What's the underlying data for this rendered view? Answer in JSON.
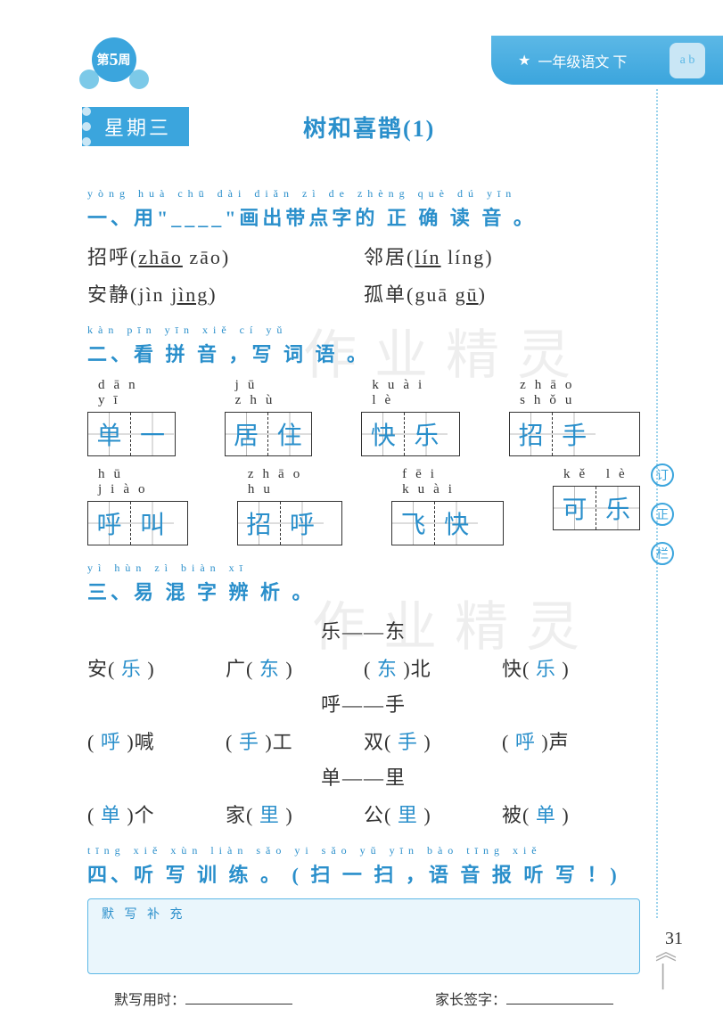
{
  "header": {
    "grade_label": "一年级语文 下",
    "cube_text": "a b"
  },
  "week_badge": {
    "prefix": "第",
    "num": "5",
    "suffix": "周"
  },
  "day_tag": "星期三",
  "lesson_title": "树和喜鹊(1)",
  "q1": {
    "pinyin": "yòng        huà chū dài diǎn zì  de zhèng què dú yīn",
    "heading": "一、用\"____\"画出带点字的 正 确 读 音 。",
    "rows": [
      {
        "left_char": "招呼(",
        "left_a": "zhāo",
        "left_b": "  zāo)",
        "right_char": "邻居(",
        "right_a": "lín",
        "right_b": "  líng)"
      },
      {
        "left_char": "安静(jìn  ",
        "left_a": "jìng",
        "left_b": ")",
        "right_char": "孤单(guā  ",
        "right_a": "gū",
        "right_b": ")"
      }
    ]
  },
  "q2": {
    "pinyin": "kàn pīn yīn   xiě cí yǔ",
    "heading": "二、看 拼 音 ，写 词 语 。",
    "rows": [
      [
        {
          "pinyin": "dān   yī",
          "chars": [
            "单",
            "一"
          ]
        },
        {
          "pinyin": "jū   zhù",
          "chars": [
            "居",
            "住"
          ]
        },
        {
          "pinyin": "kuài  lè",
          "chars": [
            "快",
            "乐"
          ]
        },
        {
          "pinyin": "zhāo shǒu",
          "chars": [
            "招",
            "手"
          ]
        }
      ],
      [
        {
          "pinyin": "hū   jiào",
          "chars": [
            "呼",
            "叫"
          ]
        },
        {
          "pinyin": "zhāo  hu",
          "chars": [
            "招",
            "呼"
          ]
        },
        {
          "pinyin": "fēi  kuài",
          "chars": [
            "飞",
            "快"
          ]
        },
        {
          "pinyin": "kě   lè",
          "chars": [
            "可",
            "乐"
          ]
        }
      ]
    ]
  },
  "q3": {
    "pinyin": "yì hùn zì biàn xī",
    "heading": "三、易 混 字 辨 析 。",
    "groups": [
      {
        "pair": "乐——东",
        "items": [
          {
            "pre": "安(",
            "ans": "乐",
            "post": ")"
          },
          {
            "pre": "广(",
            "ans": "东",
            "post": ")"
          },
          {
            "pre": "(",
            "ans": "东",
            "post": ")北"
          },
          {
            "pre": "快(",
            "ans": "乐",
            "post": ")"
          }
        ]
      },
      {
        "pair": "呼——手",
        "items": [
          {
            "pre": "(",
            "ans": "呼",
            "post": ")喊"
          },
          {
            "pre": "(",
            "ans": "手",
            "post": ")工"
          },
          {
            "pre": "双(",
            "ans": "手",
            "post": ")"
          },
          {
            "pre": "(",
            "ans": "呼",
            "post": ")声"
          }
        ]
      },
      {
        "pair": "单——里",
        "items": [
          {
            "pre": "(",
            "ans": "单",
            "post": ")个"
          },
          {
            "pre": "家(",
            "ans": "里",
            "post": ")"
          },
          {
            "pre": "公(",
            "ans": "里",
            "post": ")"
          },
          {
            "pre": "被(",
            "ans": "单",
            "post": ")"
          }
        ]
      }
    ]
  },
  "q4": {
    "pinyin": "tīng xiě xùn liàn     sǎo yi sǎo   yǔ yīn bào tīng xiě",
    "heading": "四、听 写 训 练 。 ( 扫 一 扫 ，语 音 报 听 写 ！)",
    "box_label": "默 写 补 充"
  },
  "footer": {
    "left_label": "默写用时：",
    "right_label": "家长签字："
  },
  "side_markers": [
    "订",
    "正",
    "栏"
  ],
  "page_number": "31",
  "watermark": "作业精灵",
  "colors": {
    "primary": "#2a8fcb",
    "banner": "#3ba5dd",
    "box_bg": "#eaf6fc"
  }
}
